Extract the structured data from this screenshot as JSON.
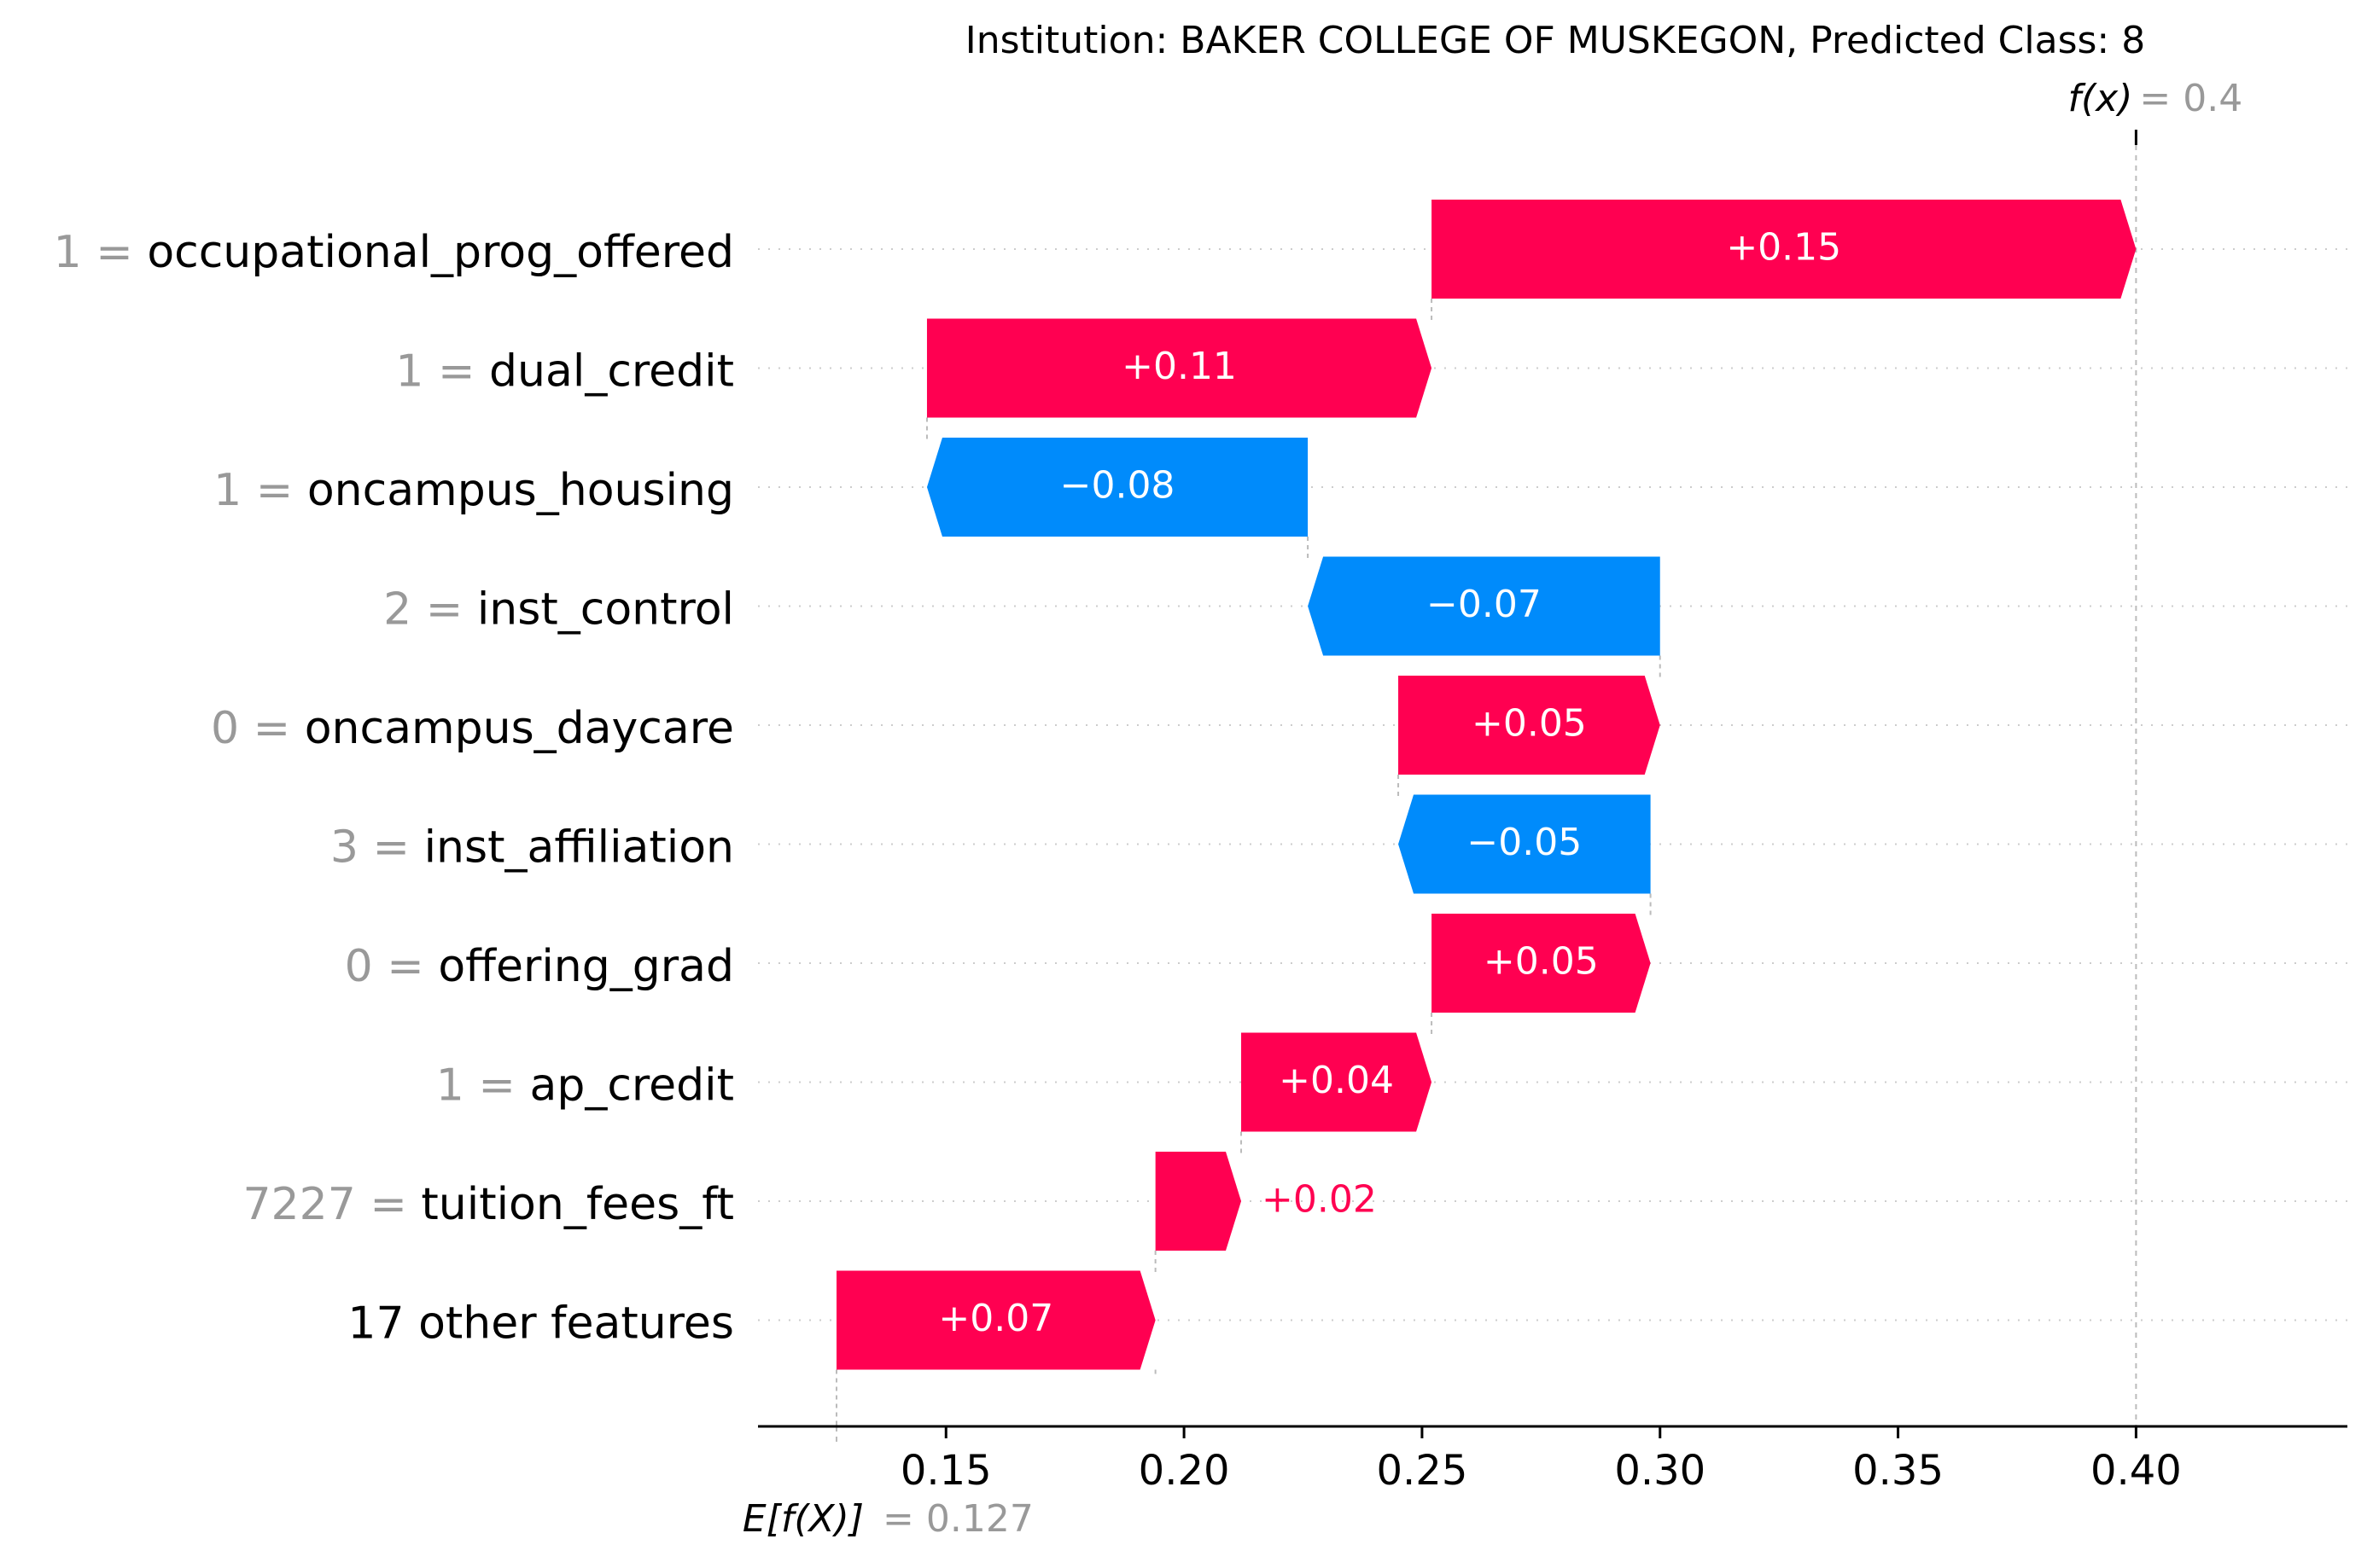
{
  "chart_data": {
    "type": "waterfall",
    "title": "Institution: BAKER COLLEGE OF MUSKEGON, Predicted Class: 8",
    "base_value": 0.127,
    "base_label": "E[f(X)]",
    "base_value_text": "= 0.127",
    "output_value": 0.4,
    "output_label": "f(x)",
    "output_value_text": "= 0.4",
    "xlim": [
      0.1105,
      0.4444
    ],
    "xticks": [
      0.15,
      0.2,
      0.25,
      0.3,
      0.35,
      0.4
    ],
    "xtick_labels": [
      "0.15",
      "0.20",
      "0.25",
      "0.30",
      "0.35",
      "0.40"
    ],
    "features": [
      {
        "value_text": "1",
        "name": "occupational_prog_offered",
        "contribution": 0.148,
        "label": "+0.15",
        "start": 0.252,
        "end": 0.4
      },
      {
        "value_text": "1",
        "name": "dual_credit",
        "contribution": 0.106,
        "label": "+0.11",
        "start": 0.146,
        "end": 0.252
      },
      {
        "value_text": "1",
        "name": "oncampus_housing",
        "contribution": -0.08,
        "label": "−0.08",
        "start": 0.226,
        "end": 0.146
      },
      {
        "value_text": "2",
        "name": "inst_control",
        "contribution": -0.074,
        "label": "−0.07",
        "start": 0.3,
        "end": 0.226
      },
      {
        "value_text": "0",
        "name": "oncampus_daycare",
        "contribution": 0.055,
        "label": "+0.05",
        "start": 0.245,
        "end": 0.3
      },
      {
        "value_text": "3",
        "name": "inst_affiliation",
        "contribution": -0.053,
        "label": "−0.05",
        "start": 0.298,
        "end": 0.245
      },
      {
        "value_text": "0",
        "name": "offering_grad",
        "contribution": 0.046,
        "label": "+0.05",
        "start": 0.252,
        "end": 0.298
      },
      {
        "value_text": "1",
        "name": "ap_credit",
        "contribution": 0.04,
        "label": "+0.04",
        "start": 0.212,
        "end": 0.252
      },
      {
        "value_text": "7227",
        "name": "tuition_fees_ft",
        "contribution": 0.018,
        "label": "+0.02",
        "start": 0.194,
        "end": 0.212
      },
      {
        "value_text": "",
        "name": "17 other features",
        "contribution": 0.067,
        "label": "+0.07",
        "start": 0.127,
        "end": 0.194
      }
    ],
    "colors": {
      "positive": "#ff0051",
      "negative": "#008bfb",
      "value_text": "#999999",
      "text": "#000000"
    },
    "grid": false
  }
}
